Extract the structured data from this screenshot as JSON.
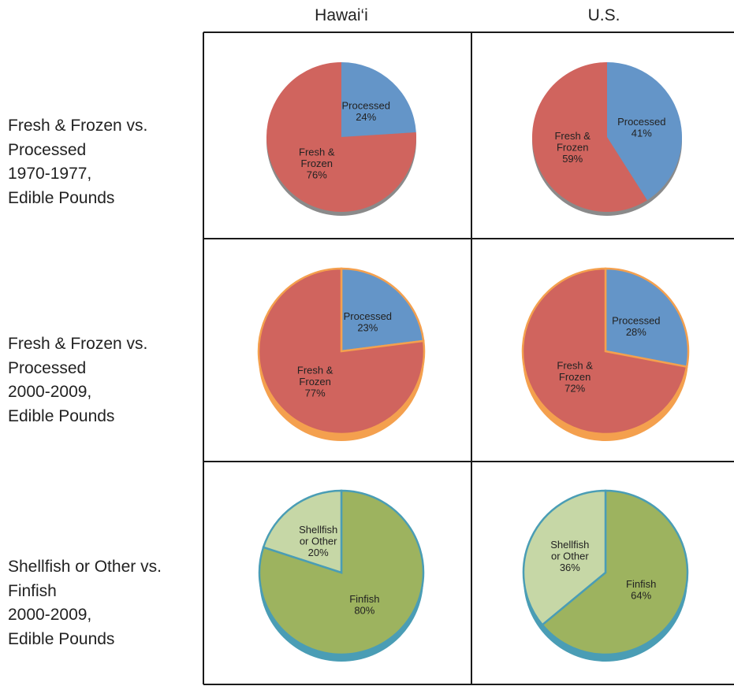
{
  "columns": [
    "Hawai‘i",
    "U.S."
  ],
  "rows": [
    {
      "label_lines": [
        "Fresh & Frozen vs.",
        "Processed",
        "1970-1977,",
        "Edible Pounds"
      ]
    },
    {
      "label_lines": [
        "Fresh & Frozen vs.",
        "Processed",
        "2000-2009,",
        "Edible Pounds"
      ]
    },
    {
      "label_lines": [
        "Shellfish or Other vs.",
        "Finfish",
        "2000-2009,",
        "Edible Pounds"
      ]
    }
  ],
  "colors": {
    "fresh_frozen": "#d0645e",
    "processed": "#6495c8",
    "finfish": "#9db35f",
    "shellfish": "#c6d7a6",
    "edge_gray": "#8a8a8a",
    "edge_orange": "#f4a04e",
    "edge_teal": "#4a9db5"
  },
  "chart_data": [
    {
      "type": "pie",
      "row": 0,
      "column": "Hawai‘i",
      "slices": [
        {
          "label_lines": [
            "Processed"
          ],
          "value": 24,
          "pct": "24%",
          "color": "#6495c8"
        },
        {
          "label_lines": [
            "Fresh &",
            "Frozen"
          ],
          "value": 76,
          "pct": "76%",
          "color": "#d0645e"
        }
      ],
      "edge": "#8a8a8a"
    },
    {
      "type": "pie",
      "row": 0,
      "column": "U.S.",
      "slices": [
        {
          "label_lines": [
            "Processed"
          ],
          "value": 41,
          "pct": "41%",
          "color": "#6495c8"
        },
        {
          "label_lines": [
            "Fresh &",
            "Frozen"
          ],
          "value": 59,
          "pct": "59%",
          "color": "#d0645e"
        }
      ],
      "edge": "#8a8a8a"
    },
    {
      "type": "pie",
      "row": 1,
      "column": "Hawai‘i",
      "slices": [
        {
          "label_lines": [
            "Processed"
          ],
          "value": 23,
          "pct": "23%",
          "color": "#6495c8"
        },
        {
          "label_lines": [
            "Fresh &",
            "Frozen"
          ],
          "value": 77,
          "pct": "77%",
          "color": "#d0645e"
        }
      ],
      "edge": "#f4a04e"
    },
    {
      "type": "pie",
      "row": 1,
      "column": "U.S.",
      "slices": [
        {
          "label_lines": [
            "Processed"
          ],
          "value": 28,
          "pct": "28%",
          "color": "#6495c8"
        },
        {
          "label_lines": [
            "Fresh &",
            "Frozen"
          ],
          "value": 72,
          "pct": "72%",
          "color": "#d0645e"
        }
      ],
      "edge": "#f4a04e"
    },
    {
      "type": "pie",
      "row": 2,
      "column": "Hawai‘i",
      "slices": [
        {
          "label_lines": [
            "Finfish"
          ],
          "value": 80,
          "pct": "80%",
          "color": "#9db35f"
        },
        {
          "label_lines": [
            "Shellfish",
            "or Other"
          ],
          "value": 20,
          "pct": "20%",
          "color": "#c6d7a6"
        }
      ],
      "edge": "#4a9db5"
    },
    {
      "type": "pie",
      "row": 2,
      "column": "U.S.",
      "slices": [
        {
          "label_lines": [
            "Finfish"
          ],
          "value": 64,
          "pct": "64%",
          "color": "#9db35f"
        },
        {
          "label_lines": [
            "Shellfish",
            "or Other"
          ],
          "value": 36,
          "pct": "36%",
          "color": "#c6d7a6"
        }
      ],
      "edge": "#4a9db5"
    }
  ]
}
